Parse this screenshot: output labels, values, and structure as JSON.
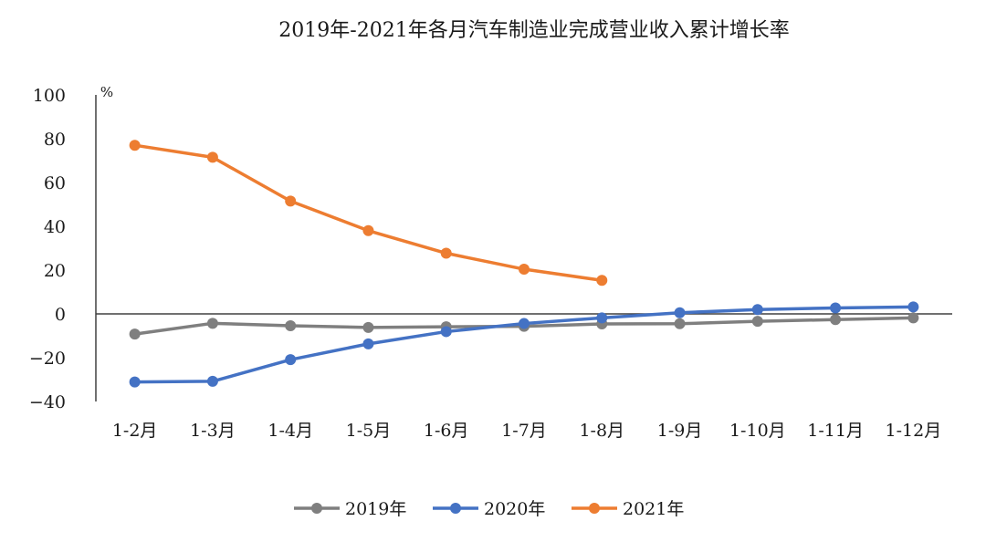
{
  "chart_data": {
    "type": "line",
    "title": "2019年-2021年各月汽车制造业完成营业收入累计增长率",
    "ylabel": "%",
    "categories": [
      "1-2月",
      "1-3月",
      "1-4月",
      "1-5月",
      "1-6月",
      "1-7月",
      "1-8月",
      "1-9月",
      "1-10月",
      "1-11月",
      "1-12月"
    ],
    "ylim": [
      -40,
      100
    ],
    "yticks": [
      100,
      80,
      60,
      40,
      20,
      0,
      -20,
      -40
    ],
    "series": [
      {
        "name": "2019年",
        "color": "#7f7f7f",
        "values": [
          -9.2,
          -4.3,
          -5.4,
          -6.2,
          -5.9,
          -5.7,
          -4.6,
          -4.5,
          -3.4,
          -2.6,
          -1.8
        ]
      },
      {
        "name": "2020年",
        "color": "#4472c4",
        "values": [
          -31.1,
          -30.8,
          -20.9,
          -13.7,
          -8.1,
          -4.4,
          -1.8,
          0.5,
          2.0,
          2.7,
          3.2
        ]
      },
      {
        "name": "2021年",
        "color": "#ed7d31",
        "values": [
          77.0,
          71.5,
          51.5,
          38.0,
          27.7,
          20.4,
          15.3,
          null,
          null,
          null,
          null
        ]
      }
    ],
    "legend_position": "bottom",
    "grid": false
  }
}
